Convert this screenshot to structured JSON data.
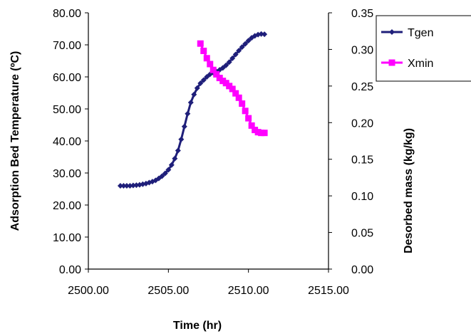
{
  "chart_data": {
    "type": "scatter",
    "title": "",
    "xlabel": "Time (hr)",
    "ylabel": "Adsorption Bed Temperature (ºC)",
    "y2label": "Desorbed mass (kg/kg)",
    "xlim": [
      2500,
      2515
    ],
    "ylim": [
      0,
      80
    ],
    "y2lim": [
      0,
      0.35
    ],
    "x_ticks": [
      "2500.00",
      "2505.00",
      "2510.00",
      "2515.00"
    ],
    "y_ticks": [
      "0.00",
      "10.00",
      "20.00",
      "30.00",
      "40.00",
      "50.00",
      "60.00",
      "70.00",
      "80.00"
    ],
    "y2_ticks": [
      "0.00",
      "0.05",
      "0.10",
      "0.15",
      "0.20",
      "0.25",
      "0.30",
      "0.35"
    ],
    "grid": false,
    "legend_position": "right",
    "series": [
      {
        "name": "Tgen",
        "axis": "left",
        "color": "#1f1f7a",
        "marker": "diamond",
        "x": [
          2502.0,
          2502.2,
          2502.4,
          2502.6,
          2502.8,
          2503.0,
          2503.2,
          2503.4,
          2503.6,
          2503.8,
          2504.0,
          2504.2,
          2504.4,
          2504.6,
          2504.8,
          2505.0,
          2505.2,
          2505.4,
          2505.6,
          2505.8,
          2506.0,
          2506.2,
          2506.4,
          2506.6,
          2506.8,
          2507.0,
          2507.2,
          2507.4,
          2507.6,
          2507.8,
          2508.0,
          2508.2,
          2508.4,
          2508.6,
          2508.8,
          2509.0,
          2509.2,
          2509.4,
          2509.6,
          2509.8,
          2510.0,
          2510.2,
          2510.4,
          2510.6,
          2510.8,
          2511.0
        ],
        "values": [
          26.0,
          26.0,
          26.0,
          26.0,
          26.1,
          26.2,
          26.3,
          26.5,
          26.7,
          27.0,
          27.3,
          27.7,
          28.3,
          29.0,
          29.9,
          31.0,
          32.5,
          34.5,
          37.0,
          40.5,
          44.5,
          48.5,
          52.0,
          54.5,
          56.5,
          58.0,
          59.0,
          60.0,
          60.8,
          61.3,
          61.7,
          62.2,
          62.8,
          63.6,
          64.6,
          65.8,
          67.0,
          68.2,
          69.3,
          70.3,
          71.3,
          72.2,
          72.8,
          73.2,
          73.4,
          73.3
        ]
      },
      {
        "name": "Xmin",
        "axis": "right",
        "color": "#ff00ff",
        "marker": "square",
        "x": [
          2507.0,
          2507.2,
          2507.4,
          2507.6,
          2507.8,
          2508.0,
          2508.2,
          2508.4,
          2508.6,
          2508.8,
          2509.0,
          2509.2,
          2509.4,
          2509.6,
          2509.8,
          2510.0,
          2510.2,
          2510.4,
          2510.6,
          2510.8,
          2511.0
        ],
        "values": [
          0.308,
          0.298,
          0.288,
          0.28,
          0.272,
          0.266,
          0.261,
          0.257,
          0.254,
          0.25,
          0.246,
          0.24,
          0.234,
          0.226,
          0.216,
          0.206,
          0.196,
          0.19,
          0.187,
          0.186,
          0.186
        ]
      }
    ]
  }
}
